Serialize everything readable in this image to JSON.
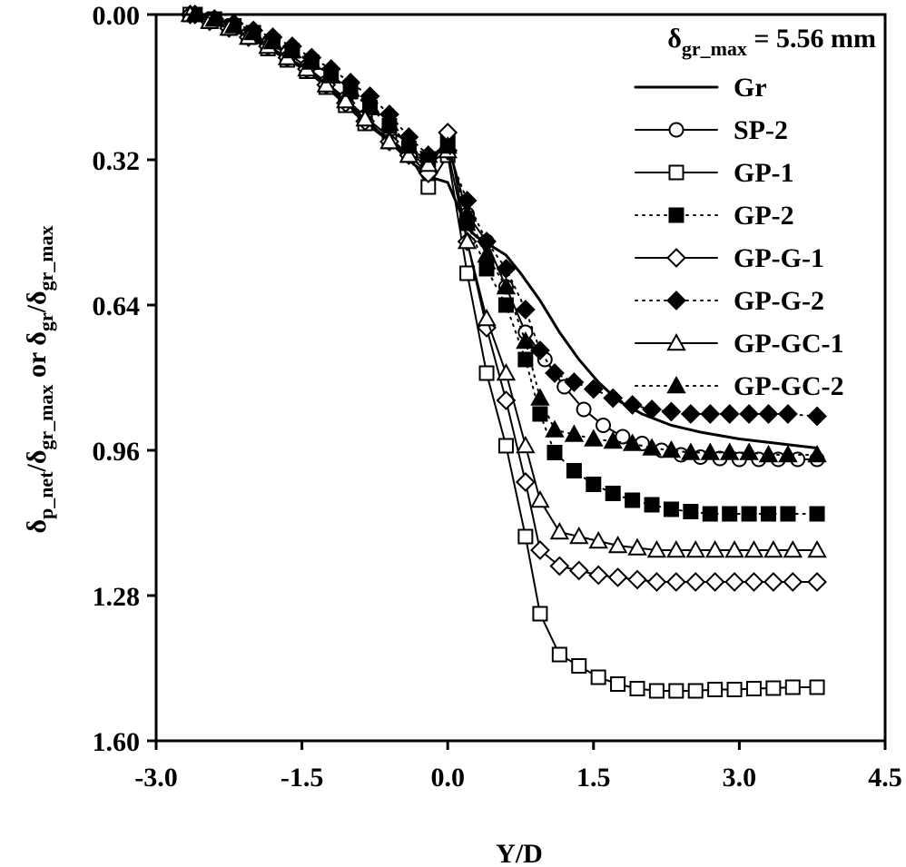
{
  "chart_data": {
    "type": "scatter",
    "xlabel": "Y/D",
    "ylabel_parts": {
      "d1": "δ",
      "s1": "p_net",
      "slash1": "/δ",
      "s2": "gr_max",
      "mid": " or δ",
      "s3": "gr",
      "slash2": "/δ",
      "s4": "gr_max"
    },
    "xlim": [
      -3.0,
      4.5
    ],
    "ylim": [
      0.0,
      1.6
    ],
    "y_inverted": true,
    "grid": false,
    "x_ticks": [
      -3.0,
      -1.5,
      0.0,
      1.5,
      3.0,
      4.5
    ],
    "x_tick_labels": [
      "-3.0",
      "-1.5",
      "0.0",
      "1.5",
      "3.0",
      "4.5"
    ],
    "y_ticks": [
      0.0,
      0.32,
      0.64,
      0.96,
      1.28,
      1.6
    ],
    "y_tick_labels": [
      "0.00",
      "0.32",
      "0.64",
      "0.96",
      "1.28",
      "1.60"
    ],
    "legend_position": "top-right",
    "legend_title": {
      "main": "δ",
      "sub": "gr_max",
      "tail": " = 5.56 mm"
    },
    "series": [
      {
        "name": "Gr",
        "line": "solid",
        "line_width": 3,
        "marker": "none",
        "x": [
          -2.65,
          -2.45,
          -2.25,
          -2.05,
          -1.85,
          -1.65,
          -1.45,
          -1.25,
          -1.05,
          -0.85,
          -0.6,
          -0.35,
          -0.15,
          0.0,
          0.1,
          0.2,
          0.3,
          0.45,
          0.6,
          0.75,
          0.95,
          1.15,
          1.35,
          1.55,
          1.75,
          2.0,
          2.3,
          2.6,
          3.0,
          3.4,
          3.8
        ],
        "y": [
          0.0,
          0.015,
          0.03,
          0.05,
          0.07,
          0.095,
          0.12,
          0.155,
          0.19,
          0.23,
          0.28,
          0.33,
          0.36,
          0.37,
          0.42,
          0.47,
          0.49,
          0.51,
          0.53,
          0.57,
          0.63,
          0.7,
          0.76,
          0.81,
          0.85,
          0.88,
          0.905,
          0.92,
          0.935,
          0.945,
          0.955
        ]
      },
      {
        "name": "SP-2",
        "line": "solid",
        "marker": "circle-open",
        "x": [
          -2.65,
          -2.45,
          -2.25,
          -2.05,
          -1.85,
          -1.65,
          -1.45,
          -1.25,
          -1.05,
          -0.85,
          -0.6,
          -0.4,
          -0.2,
          0.0,
          0.2,
          0.4,
          0.6,
          0.8,
          1.0,
          1.2,
          1.4,
          1.6,
          1.8,
          2.0,
          2.2,
          2.4,
          2.6,
          2.8,
          3.0,
          3.2,
          3.4,
          3.6,
          3.8
        ],
        "y": [
          0.0,
          0.01,
          0.025,
          0.045,
          0.065,
          0.085,
          0.115,
          0.15,
          0.185,
          0.225,
          0.27,
          0.31,
          0.32,
          0.28,
          0.44,
          0.5,
          0.6,
          0.7,
          0.76,
          0.82,
          0.87,
          0.905,
          0.93,
          0.945,
          0.96,
          0.97,
          0.975,
          0.978,
          0.98,
          0.98,
          0.98,
          0.98,
          0.98
        ]
      },
      {
        "name": "GP-1",
        "line": "solid",
        "marker": "square-open",
        "x": [
          -2.65,
          -2.45,
          -2.25,
          -2.05,
          -1.85,
          -1.65,
          -1.45,
          -1.25,
          -1.05,
          -0.85,
          -0.6,
          -0.4,
          -0.2,
          0.0,
          0.2,
          0.4,
          0.6,
          0.8,
          0.95,
          1.15,
          1.35,
          1.55,
          1.75,
          1.95,
          2.15,
          2.35,
          2.55,
          2.75,
          2.95,
          3.15,
          3.35,
          3.55,
          3.8
        ],
        "y": [
          0.0,
          0.015,
          0.03,
          0.05,
          0.075,
          0.1,
          0.125,
          0.16,
          0.2,
          0.24,
          0.28,
          0.31,
          0.38,
          0.31,
          0.57,
          0.79,
          0.95,
          1.15,
          1.32,
          1.41,
          1.435,
          1.46,
          1.475,
          1.485,
          1.49,
          1.49,
          1.49,
          1.487,
          1.487,
          1.485,
          1.484,
          1.482,
          1.482
        ]
      },
      {
        "name": "GP-2",
        "line": "dotted",
        "marker": "square-filled",
        "x": [
          -2.6,
          -2.4,
          -2.2,
          -2.0,
          -1.8,
          -1.6,
          -1.4,
          -1.2,
          -1.0,
          -0.8,
          -0.6,
          -0.4,
          -0.2,
          0.0,
          0.2,
          0.4,
          0.6,
          0.8,
          0.95,
          1.1,
          1.3,
          1.5,
          1.7,
          1.9,
          2.1,
          2.3,
          2.5,
          2.7,
          2.9,
          3.1,
          3.3,
          3.5,
          3.8
        ],
        "y": [
          0.0,
          0.01,
          0.025,
          0.04,
          0.06,
          0.08,
          0.105,
          0.135,
          0.17,
          0.205,
          0.245,
          0.295,
          0.32,
          0.28,
          0.46,
          0.56,
          0.64,
          0.76,
          0.88,
          0.965,
          1.005,
          1.035,
          1.055,
          1.07,
          1.08,
          1.09,
          1.095,
          1.1,
          1.1,
          1.1,
          1.1,
          1.1,
          1.1
        ]
      },
      {
        "name": "GP-G-1",
        "line": "solid",
        "marker": "diamond-open",
        "x": [
          -2.65,
          -2.45,
          -2.25,
          -2.05,
          -1.85,
          -1.65,
          -1.45,
          -1.25,
          -1.05,
          -0.85,
          -0.6,
          -0.4,
          -0.2,
          0.0,
          0.2,
          0.4,
          0.6,
          0.8,
          0.95,
          1.15,
          1.35,
          1.55,
          1.75,
          1.95,
          2.15,
          2.35,
          2.55,
          2.75,
          2.95,
          3.15,
          3.35,
          3.55,
          3.8
        ],
        "y": [
          0.0,
          0.015,
          0.03,
          0.05,
          0.07,
          0.095,
          0.12,
          0.155,
          0.195,
          0.235,
          0.28,
          0.31,
          0.35,
          0.26,
          0.5,
          0.69,
          0.85,
          1.03,
          1.18,
          1.215,
          1.225,
          1.235,
          1.24,
          1.245,
          1.25,
          1.25,
          1.25,
          1.25,
          1.25,
          1.25,
          1.25,
          1.25,
          1.25
        ]
      },
      {
        "name": "GP-G-2",
        "line": "dotted",
        "marker": "diamond-filled",
        "x": [
          -2.6,
          -2.4,
          -2.2,
          -2.0,
          -1.8,
          -1.6,
          -1.4,
          -1.2,
          -1.0,
          -0.8,
          -0.6,
          -0.4,
          -0.2,
          0.0,
          0.2,
          0.4,
          0.6,
          0.8,
          0.95,
          1.1,
          1.3,
          1.5,
          1.7,
          1.9,
          2.1,
          2.3,
          2.5,
          2.7,
          2.9,
          3.1,
          3.3,
          3.5,
          3.8
        ],
        "y": [
          0.0,
          0.01,
          0.02,
          0.035,
          0.05,
          0.07,
          0.095,
          0.12,
          0.15,
          0.18,
          0.22,
          0.27,
          0.31,
          0.3,
          0.41,
          0.5,
          0.56,
          0.65,
          0.74,
          0.79,
          0.81,
          0.825,
          0.845,
          0.86,
          0.87,
          0.875,
          0.88,
          0.88,
          0.88,
          0.88,
          0.88,
          0.88,
          0.885
        ]
      },
      {
        "name": "GP-GC-1",
        "line": "solid",
        "marker": "triangle-open",
        "x": [
          -2.65,
          -2.45,
          -2.25,
          -2.05,
          -1.85,
          -1.65,
          -1.45,
          -1.25,
          -1.05,
          -0.85,
          -0.6,
          -0.4,
          -0.2,
          0.0,
          0.2,
          0.4,
          0.6,
          0.8,
          0.95,
          1.15,
          1.35,
          1.55,
          1.75,
          1.95,
          2.15,
          2.35,
          2.55,
          2.75,
          2.95,
          3.15,
          3.35,
          3.55,
          3.8
        ],
        "y": [
          0.0,
          0.015,
          0.03,
          0.05,
          0.07,
          0.095,
          0.12,
          0.155,
          0.19,
          0.23,
          0.28,
          0.31,
          0.33,
          0.3,
          0.5,
          0.67,
          0.79,
          0.95,
          1.07,
          1.14,
          1.15,
          1.16,
          1.17,
          1.175,
          1.18,
          1.18,
          1.18,
          1.18,
          1.18,
          1.18,
          1.18,
          1.18,
          1.18
        ]
      },
      {
        "name": "GP-GC-2",
        "line": "dotted",
        "marker": "triangle-filled",
        "x": [
          -2.6,
          -2.4,
          -2.2,
          -2.0,
          -1.8,
          -1.6,
          -1.4,
          -1.2,
          -1.0,
          -0.8,
          -0.6,
          -0.4,
          -0.2,
          0.0,
          0.2,
          0.4,
          0.6,
          0.8,
          0.95,
          1.1,
          1.3,
          1.5,
          1.7,
          1.9,
          2.1,
          2.3,
          2.5,
          2.7,
          2.9,
          3.1,
          3.3,
          3.5,
          3.8
        ],
        "y": [
          0.0,
          0.01,
          0.025,
          0.04,
          0.06,
          0.08,
          0.105,
          0.135,
          0.165,
          0.2,
          0.24,
          0.29,
          0.31,
          0.29,
          0.44,
          0.53,
          0.6,
          0.72,
          0.845,
          0.915,
          0.925,
          0.935,
          0.94,
          0.945,
          0.955,
          0.96,
          0.965,
          0.965,
          0.965,
          0.965,
          0.97,
          0.97,
          0.97
        ]
      }
    ]
  }
}
